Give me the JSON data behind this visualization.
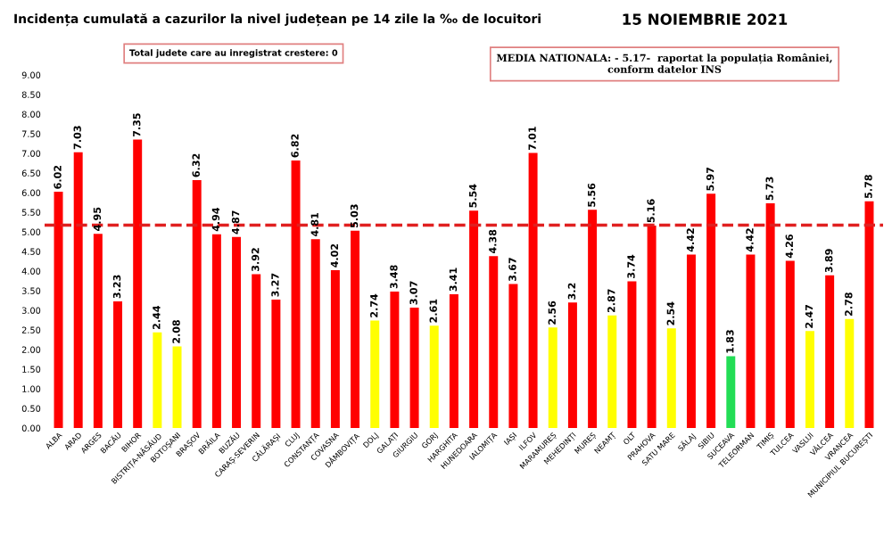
{
  "chart_data": {
    "type": "bar",
    "title": "Incidența cumulată a cazurilor la nivel județean pe 14 zile la ‰ de locuitori",
    "subtitle": "15 NOIEMBRIE 2021",
    "annotations": [
      "Total judete care au inregistrat crestere: 0",
      "MEDIA NATIONALA: - 5.17-  raportat la populația României, conform datelor INS"
    ],
    "categories": [
      "ALBA",
      "ARAD",
      "ARGES",
      "BACĂU",
      "BIHOR",
      "BISTRIȚA-NĂSĂUD",
      "BOTOȘANI",
      "BRAȘOV",
      "BRĂILA",
      "BUZĂU",
      "CARAȘ-SEVERIN",
      "CĂLĂRAȘI",
      "CLUJ",
      "CONSTANȚA",
      "COVASNA",
      "DÂMBOVIȚA",
      "DOLJ",
      "GALAȚI",
      "GIURGIU",
      "GORJ",
      "HARGHITA",
      "HUNEDOARA",
      "IALOMIȚA",
      "IAȘI",
      "ILFOV",
      "MARAMUREȘ",
      "MEHEDINȚI",
      "MUREȘ",
      "NEAMȚ",
      "OLT",
      "PRAHOVA",
      "SATU MARE",
      "SĂLAJ",
      "SIBIU",
      "SUCEAVA",
      "TELEORMAN",
      "TIMIȘ",
      "TULCEA",
      "VASLUI",
      "VÂLCEA",
      "VRANCEA",
      "MUNICIPIUL BUCUREȘTI"
    ],
    "values": [
      6.02,
      7.03,
      4.95,
      3.23,
      7.35,
      2.44,
      2.08,
      6.32,
      4.94,
      4.87,
      3.92,
      3.27,
      6.82,
      4.81,
      4.02,
      5.03,
      2.74,
      3.48,
      3.07,
      2.61,
      3.41,
      5.54,
      4.38,
      3.67,
      7.01,
      2.56,
      3.2,
      5.56,
      2.87,
      3.74,
      5.16,
      2.54,
      4.42,
      5.97,
      1.83,
      4.42,
      5.73,
      4.26,
      2.47,
      3.89,
      2.78,
      5.78
    ],
    "colors": [
      "#ff0000",
      "#ff0000",
      "#ff0000",
      "#ff0000",
      "#ff0000",
      "#ffff00",
      "#ffff00",
      "#ff0000",
      "#ff0000",
      "#ff0000",
      "#ff0000",
      "#ff0000",
      "#ff0000",
      "#ff0000",
      "#ff0000",
      "#ff0000",
      "#ffff00",
      "#ff0000",
      "#ff0000",
      "#ffff00",
      "#ff0000",
      "#ff0000",
      "#ff0000",
      "#ff0000",
      "#ff0000",
      "#ffff00",
      "#ff0000",
      "#ff0000",
      "#ffff00",
      "#ff0000",
      "#ff0000",
      "#ffff00",
      "#ff0000",
      "#ff0000",
      "#22dd55",
      "#ff0000",
      "#ff0000",
      "#ff0000",
      "#ffff00",
      "#ff0000",
      "#ffff00",
      "#ff0000"
    ],
    "data_labels": true,
    "ylim": [
      0,
      9
    ],
    "yticks": [
      {
        "value": 0,
        "label": "0.00"
      },
      {
        "value": 0.5,
        "label": "0.50"
      },
      {
        "value": 1,
        "label": "1.00"
      },
      {
        "value": 1.5,
        "label": "1.50"
      },
      {
        "value": 2,
        "label": "2.00"
      },
      {
        "value": 2.5,
        "label": "2.50"
      },
      {
        "value": 3,
        "label": "3.00"
      },
      {
        "value": 3.5,
        "label": "3.50"
      },
      {
        "value": 4,
        "label": "4.00"
      },
      {
        "value": 4.5,
        "label": "4.50"
      },
      {
        "value": 5,
        "label": "5.00"
      },
      {
        "value": 5.5,
        "label": "5.50"
      },
      {
        "value": 6,
        "label": "6.00"
      },
      {
        "value": 6.5,
        "label": "6.50"
      },
      {
        "value": 7,
        "label": "7.00"
      },
      {
        "value": 7.5,
        "label": "7.50"
      },
      {
        "value": 8,
        "label": "8.00"
      },
      {
        "value": 8.5,
        "label": "8.50"
      },
      {
        "value": 9,
        "label": "9.00"
      }
    ],
    "ref_lines": [
      {
        "axis": "y",
        "value": 5.17,
        "color": "#e02020",
        "line_style": "dashed"
      }
    ],
    "grid": false,
    "legend": false
  }
}
